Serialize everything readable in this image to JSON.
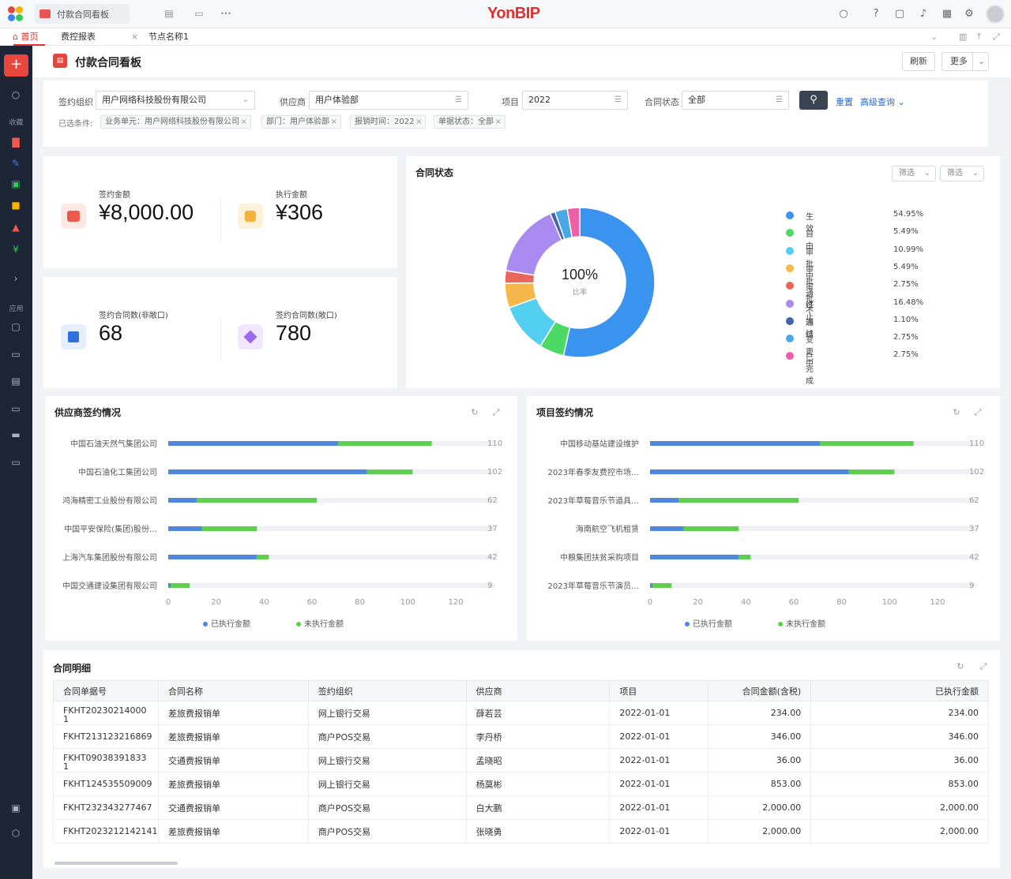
{
  "brand": "YonBIP",
  "window_tab": "付款合同看板",
  "nav_tabs": [
    {
      "label": "首页",
      "active": true
    },
    {
      "label": "费控报表",
      "close": "×"
    },
    {
      "label": "节点名称1"
    }
  ],
  "sidebar": {
    "section_favorites": "收藏",
    "section_apps": "应用"
  },
  "page": {
    "title": "付款合同看板",
    "refresh": "刷新",
    "more": "更多"
  },
  "filters": {
    "org_label": "签约组织",
    "org_value": "用户网络科技股份有限公司",
    "supplier_label": "供应商",
    "supplier_value": "用户体验部",
    "project_label": "项目",
    "project_value": "2022",
    "status_label": "合同状态",
    "status_value": "全部",
    "reset": "重置",
    "advanced": "高级查询",
    "selected_label": "已选条件:",
    "chips": [
      "业务单元：用户网络科技股份有限公司",
      "部门：用户体验部",
      "报销时间：2022",
      "单据状态：全部"
    ]
  },
  "kpis": [
    {
      "label": "签约金额",
      "value": "¥8,000.00"
    },
    {
      "label": "执行金额",
      "value": "¥306"
    },
    {
      "label": "签约合同数(非敞口)",
      "value": "68"
    },
    {
      "label": "签约合同数(敞口)",
      "value": "780"
    }
  ],
  "status_card": {
    "title": "合同状态",
    "filter1": "筛选",
    "filter2": "筛选",
    "center_value": "100%",
    "center_label": "比率"
  },
  "supplier_chart_title": "供应商签约情况",
  "project_chart_title": "项目签约情况",
  "table": {
    "title": "合同明细",
    "headers": [
      "合同单据号",
      "合同名称",
      "签约组织",
      "供应商",
      "项目",
      "合同金额(含税)",
      "已执行金额"
    ],
    "rows": [
      [
        "FKHT20230214000\n1",
        "差旅费报销单",
        "网上银行交易",
        "薛若芸",
        "2022-01-01",
        "234.00",
        "234.00"
      ],
      [
        "FKHT213123216869",
        "差旅费报销单",
        "商户POS交易",
        "李丹桥",
        "2022-01-01",
        "346.00",
        "346.00"
      ],
      [
        "FKHT09038391833\n1",
        "交通费报销单",
        "网上银行交易",
        "孟晓昭",
        "2022-01-01",
        "36.00",
        "36.00"
      ],
      [
        "FKHT124535509009",
        "差旅费报销单",
        "网上银行交易",
        "杨莫彬",
        "2022-01-01",
        "853.00",
        "853.00"
      ],
      [
        "FKHT232343277467",
        "交通费报销单",
        "商户POS交易",
        "白大鹏",
        "2022-01-01",
        "2,000.00",
        "2,000.00"
      ],
      [
        "FKHT2023212142141",
        "差旅费报销单",
        "商户POS交易",
        "张晓勇",
        "2022-01-01",
        "2,000.00",
        "2,000.00"
      ]
    ]
  },
  "colors": {
    "blue": "#3b93f0",
    "green": "#4cd964",
    "cyan": "#53d0ef",
    "yellow": "#f5b84a",
    "red": "#e8665a",
    "purple": "#a98af0",
    "navy": "#4662a8",
    "sky": "#4aa7e8",
    "pink": "#ef5fa8",
    "bar_executed": "#4f86e0",
    "bar_pending": "#5cd04c"
  },
  "chart_data": [
    {
      "type": "pie",
      "title": "合同状态",
      "labels": [
        "生效",
        "自由",
        "审批中",
        "审批通过",
        "审批不通过",
        "终止",
        "冻结",
        "变更中",
        "已完成"
      ],
      "values": [
        54.95,
        5.49,
        10.99,
        5.49,
        2.75,
        16.48,
        1.1,
        2.75,
        2.75
      ],
      "display": [
        "54.95%",
        "5.49%",
        "10.99%",
        "5.49%",
        "2.75%",
        "16.48%",
        "1.10%",
        "2.75%",
        "2.75%"
      ],
      "colors": [
        "#3b93f0",
        "#4cd964",
        "#53d0ef",
        "#f5b84a",
        "#e8665a",
        "#a98af0",
        "#4662a8",
        "#4aa7e8",
        "#ef5fa8"
      ],
      "legend": "right"
    },
    {
      "type": "bar",
      "orientation": "horizontal",
      "stacked": true,
      "title": "供应商签约情况",
      "categories": [
        "中国石油天然气集团公司",
        "中国石油化工集团公司",
        "鸿海精密工业股份有限公司",
        "中国平安保险(集团)股份…",
        "上海汽车集团股份有限公司",
        "中国交通建设集团有限公司"
      ],
      "series": [
        {
          "name": "已执行金额",
          "values": [
            71,
            83,
            12,
            14,
            37,
            1
          ]
        },
        {
          "name": "未执行金额",
          "values": [
            39,
            19,
            50,
            23,
            5,
            8
          ]
        }
      ],
      "totals": [
        "110",
        "102",
        "62",
        "37",
        "42",
        "9"
      ],
      "xlim": [
        0,
        120
      ],
      "xticks": [
        "0",
        "20",
        "40",
        "60",
        "80",
        "100",
        "120"
      ],
      "legend": "bottom"
    },
    {
      "type": "bar",
      "orientation": "horizontal",
      "stacked": true,
      "title": "项目签约情况",
      "categories": [
        "中国移动基站建设维护",
        "2023年春季友费控市场…",
        "2023年草莓音乐节道具…",
        "海南航空飞机租赁",
        "中粮集团扶贫采购项目",
        "2023年草莓音乐节演员…"
      ],
      "series": [
        {
          "name": "已执行金额",
          "values": [
            71,
            83,
            12,
            14,
            37,
            1
          ]
        },
        {
          "name": "未执行金额",
          "values": [
            39,
            19,
            50,
            23,
            5,
            8
          ]
        }
      ],
      "totals": [
        "110",
        "102",
        "62",
        "37",
        "42",
        "9"
      ],
      "xlim": [
        0,
        120
      ],
      "xticks": [
        "0",
        "20",
        "40",
        "60",
        "80",
        "100",
        "120"
      ],
      "legend": "bottom"
    }
  ]
}
